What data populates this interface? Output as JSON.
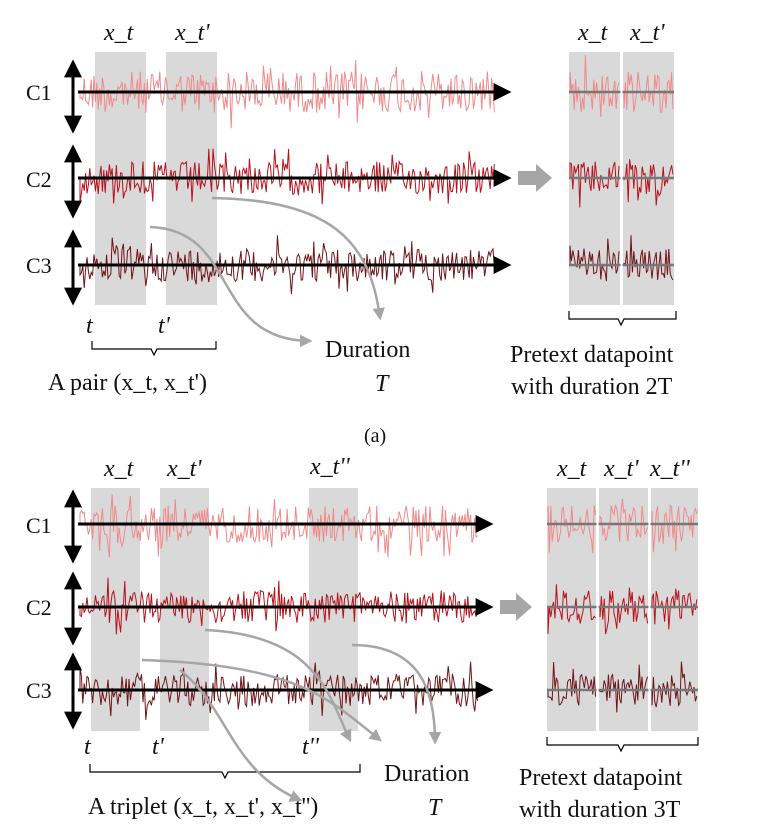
{
  "panels": [
    {
      "channels": [
        "C1",
        "C2",
        "C3"
      ],
      "segment_labels": [
        "x_t",
        "x_t'"
      ],
      "time_labels": [
        "t",
        "t'"
      ],
      "group_caption": "A pair (x_t, x_t')",
      "duration_label": "Duration",
      "duration_symbol": "T",
      "pretext_line1": "Pretext datapoint",
      "pretext_line2": "with duration 2T",
      "panel_label": "(a)"
    },
    {
      "channels": [
        "C1",
        "C2",
        "C3"
      ],
      "segment_labels": [
        "x_t",
        "x_t'",
        "x_t''"
      ],
      "time_labels": [
        "t",
        "t'",
        "t''"
      ],
      "group_caption": "A triplet (x_t, x_t', x_t'')",
      "duration_label": "Duration",
      "duration_symbol": "T",
      "pretext_line1": "Pretext datapoint",
      "pretext_line2": "with duration 3T"
    }
  ],
  "colors": {
    "c1": "#f08a8a",
    "c2": "#b5121b",
    "c3": "#6e1418",
    "highlight": "#d9d9d9",
    "arrow_gray": "#a6a6a6",
    "axis": "#000000"
  }
}
